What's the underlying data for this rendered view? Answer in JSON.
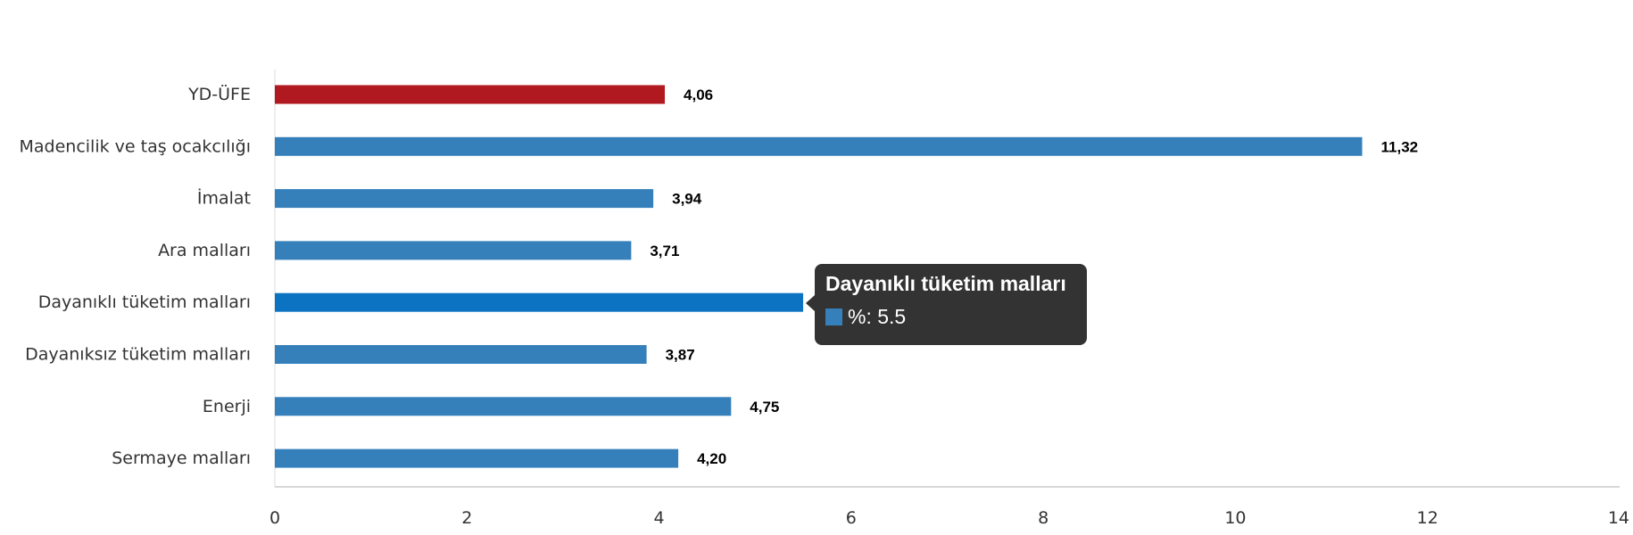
{
  "chart_data": {
    "type": "bar",
    "orientation": "horizontal",
    "categories": [
      "YD-ÜFE",
      "Madencilik ve taş ocakcılığı",
      "İmalat",
      "Ara malları",
      "Dayanıklı tüketim malları",
      "Dayanıksız tüketim malları",
      "Enerji",
      "Sermaye malları"
    ],
    "values": [
      4.06,
      11.32,
      3.94,
      3.71,
      5.5,
      3.87,
      4.75,
      4.2
    ],
    "data_labels": [
      "4,06",
      "11,32",
      "3,94",
      "3,71",
      "5,50",
      "3,87",
      "4,75",
      "4,20"
    ],
    "bar_colors": [
      "#b0191f",
      "#3580bb",
      "#3580bb",
      "#3580bb",
      "#0c73c2",
      "#3580bb",
      "#3580bb",
      "#3580bb"
    ],
    "xlim": [
      0,
      14
    ],
    "xticks": [
      0,
      2,
      4,
      6,
      8,
      10,
      12,
      14
    ],
    "grid": false,
    "legend": "none"
  },
  "tooltip": {
    "title": "Dayanıklı tüketim malları",
    "value_text": "%: 5.5",
    "swatch_color": "#3580bb"
  }
}
